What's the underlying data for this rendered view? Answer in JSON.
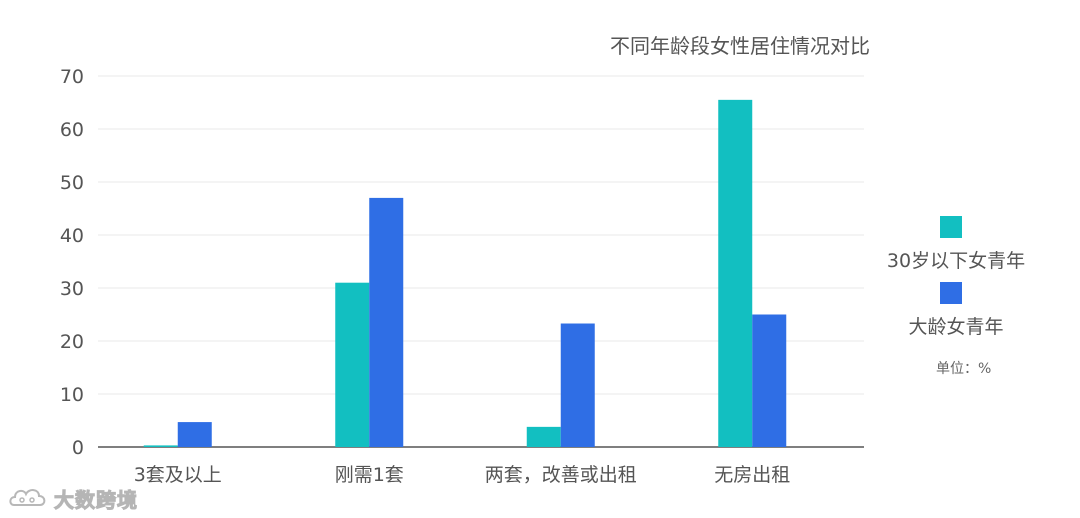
{
  "chart_data": {
    "type": "bar",
    "title": "不同年龄段女性居住情况对比",
    "categories": [
      "3套及以上",
      "刚需1套",
      "两套，改善或出租",
      "无房出租"
    ],
    "series": [
      {
        "name": "30岁以下女青年",
        "color": "#12bfc1",
        "values": [
          0.3,
          31,
          3.8,
          65.5
        ]
      },
      {
        "name": "大龄女青年",
        "color": "#2f6ee5",
        "values": [
          4.7,
          47,
          23.3,
          25
        ]
      }
    ],
    "ylim": [
      0,
      70
    ],
    "yticks": [
      0,
      10,
      20,
      30,
      40,
      50,
      60,
      70
    ],
    "grid": true,
    "legend_position": "right",
    "unit": "单位：%"
  },
  "watermark": {
    "text": "大数跨境",
    "logo_icon": "cloud-logo-icon"
  }
}
